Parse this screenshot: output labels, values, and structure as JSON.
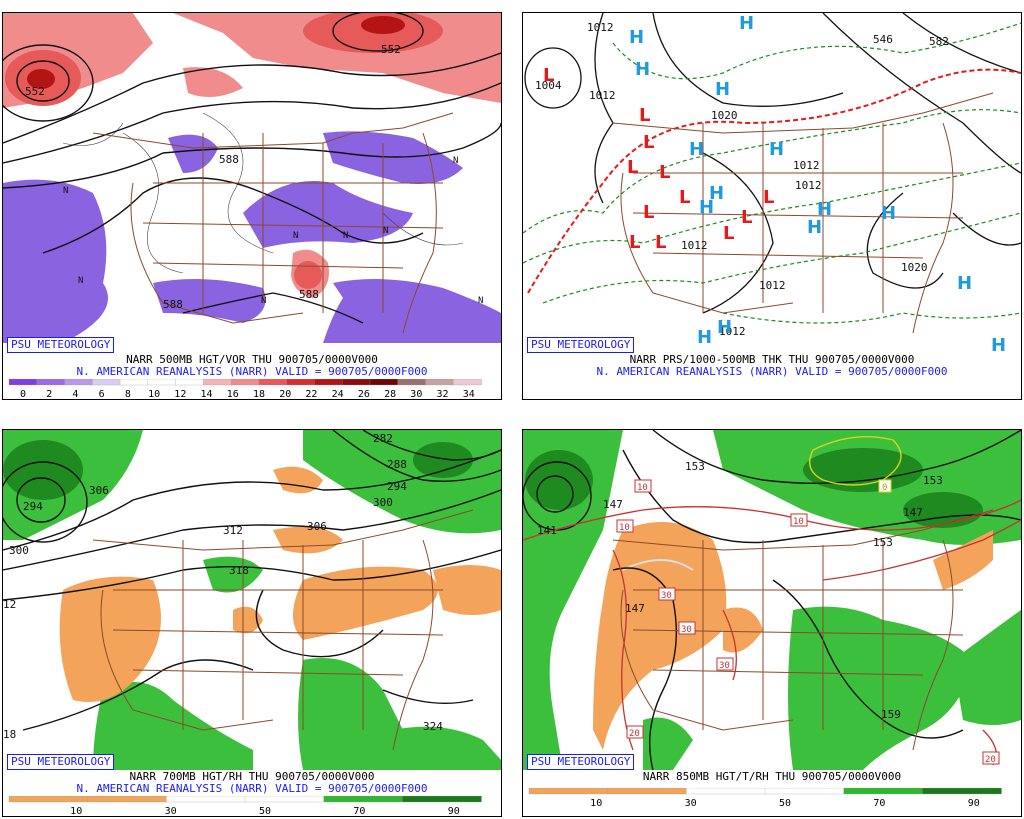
{
  "panels": [
    {
      "id": "p1",
      "logo": "PSU METEOROLOGY",
      "caption1": "NARR 500MB HGT/VOR THU 900705/0000V000",
      "caption2": "N. AMERICAN REANALYSIS (NARR) VALID = 900705/0000F000",
      "contour_labels": [
        "552",
        "588",
        "588",
        "588",
        "552"
      ],
      "markers": [
        "N",
        "N",
        "N",
        "N",
        "N",
        "N",
        "N",
        "N"
      ],
      "scale": {
        "ticks": [
          "0",
          "2",
          "4",
          "6",
          "8",
          "10",
          "12",
          "14",
          "16",
          "18",
          "20",
          "22",
          "24",
          "26",
          "28",
          "30",
          "32",
          "34"
        ],
        "colors": [
          "#7b3fe4",
          "#9c6ae6",
          "#b89ae9",
          "#d9cdf2",
          "#ffffff",
          "#ffffff",
          "#ffffff",
          "#f7b3b3",
          "#f08c8c",
          "#e65a5a",
          "#d62e2e",
          "#b51414",
          "#8c0a0a",
          "#6b0606",
          "#9b7070",
          "#c9a1a1",
          "#f0c8d0"
        ]
      }
    },
    {
      "id": "p2",
      "logo": "PSU METEOROLOGY",
      "caption1": "NARR PRS/1000-500MB THK THU 900705/0000V000",
      "caption2": "N. AMERICAN REANALYSIS (NARR) VALID = 900705/0000F000",
      "contour_labels": [
        "1004",
        "1012",
        "1012",
        "1012",
        "1020",
        "1012",
        "1012",
        "1012",
        "1020",
        "1012",
        "546",
        "582"
      ],
      "low_symbol": "L",
      "high_symbol": "H"
    },
    {
      "id": "p3",
      "logo": "PSU METEOROLOGY",
      "caption1": "NARR 700MB HGT/RH THU 900705/0000V000",
      "caption2": "N. AMERICAN REANALYSIS (NARR) VALID = 900705/0000F000",
      "contour_labels": [
        "294",
        "300",
        "306",
        "312",
        "318",
        "282",
        "288",
        "294",
        "300",
        "306",
        "324",
        "12",
        "18"
      ],
      "scale": {
        "ticks": [
          "10",
          "30",
          "50",
          "70",
          "90"
        ],
        "colors": [
          "#f3a35a",
          "#f3a35a",
          "#ffffff",
          "#ffffff",
          "#2eb82e",
          "#1a7a1a"
        ]
      }
    },
    {
      "id": "p4",
      "logo": "PSU METEOROLOGY",
      "caption1": "NARR 850MB HGT/T/RH THU 900705/0000V000",
      "caption2": "",
      "contour_labels": [
        "141",
        "147",
        "153",
        "147",
        "153",
        "147",
        "153",
        "159"
      ],
      "temp_labels": [
        "10",
        "10",
        "10",
        "30",
        "30",
        "30",
        "20",
        "20",
        "0"
      ],
      "scale": {
        "ticks": [
          "10",
          "30",
          "50",
          "70",
          "90"
        ],
        "colors": [
          "#f3a35a",
          "#f3a35a",
          "#ffffff",
          "#ffffff",
          "#2eb82e",
          "#1a7a1a"
        ]
      }
    }
  ],
  "colors": {
    "vort_pos": "#e85050",
    "vort_pos_dark": "#b01818",
    "vort_neg": "#8a63e0",
    "border": "#8b4a2b",
    "low": "#e41a1a",
    "high": "#1e9be0",
    "front_dash": "#1a8c1a",
    "rh_moist": "#3cbf3c",
    "rh_dry": "#f3a35a",
    "temp": "#c83232"
  }
}
